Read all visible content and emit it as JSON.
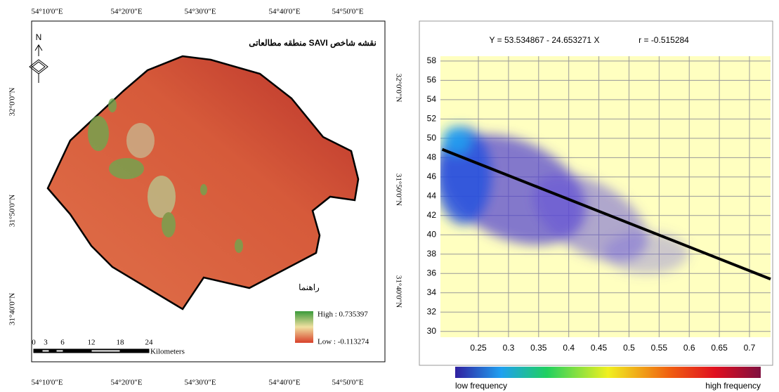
{
  "map": {
    "title": "نقشه شاخص SAVI منطقه مطالعاتی",
    "north": "N",
    "top_labels": [
      "54°10'0\"E",
      "54°20'0\"E",
      "54°30'0\"E",
      "54°40'0\"E",
      "54°50'0\"E"
    ],
    "bottom_labels": [
      "54°10'0\"E",
      "54°20'0\"E",
      "54°30'0\"E",
      "54°40'0\"E",
      "54°50'0\"E"
    ],
    "left_labels": [
      "32°0'0\"N",
      "31°50'0\"N",
      "31°40'0\"N"
    ],
    "right_labels": [
      "32°0'0\"N",
      "31°50'0\"N",
      "31°40'0\"N"
    ],
    "legend": {
      "title": "راهنما",
      "high": "High : 0.735397",
      "low": "Low : -0.113274"
    },
    "scale": {
      "ticks": [
        "0",
        "3",
        "6",
        "12",
        "18",
        "24"
      ],
      "unit": "Kilometers"
    }
  },
  "chart_data": {
    "type": "scatter",
    "title": "Y = 53.534867 - 24.653271 X",
    "subtitle": "r = -0.515284",
    "xlim": [
      0.187,
      0.735
    ],
    "ylim": [
      29.4,
      58.5
    ],
    "xticks": [
      0.25,
      0.3,
      0.35,
      0.4,
      0.45,
      0.5,
      0.55,
      0.6,
      0.65,
      0.7
    ],
    "yticks": [
      30,
      32,
      34,
      36,
      38,
      40,
      42,
      44,
      46,
      48,
      50,
      52,
      54,
      56,
      58
    ],
    "grid": true,
    "fit_line": {
      "x": [
        0.19,
        0.735
      ],
      "y": [
        48.85,
        35.42
      ],
      "color": "#000000"
    },
    "colorbar": {
      "low": "low frequency",
      "high": "high frequency"
    }
  }
}
